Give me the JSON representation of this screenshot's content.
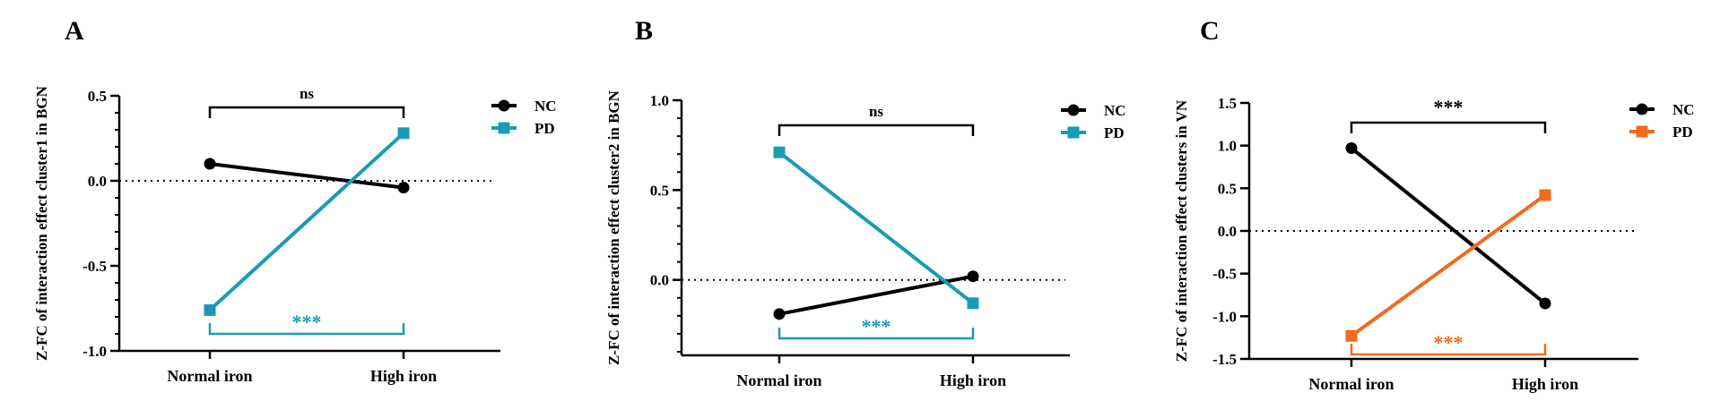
{
  "chart_data": [
    {
      "type": "line",
      "panel_label": "A",
      "ylabel": "Z-FC of interaction effect cluster1 in BGN",
      "categories": [
        "Normal iron",
        "High iron"
      ],
      "ylim": [
        -1.0,
        0.5
      ],
      "yticks": [
        "0.5",
        "0.0",
        "-0.5",
        "-1.0"
      ],
      "ytick_values": [
        0.5,
        0.0,
        -0.5,
        -1.0
      ],
      "minor_step": 0.1,
      "reference_line": 0.0,
      "series": [
        {
          "name": "NC",
          "values": [
            0.1,
            -0.04
          ],
          "color": "#000000",
          "marker": "circle"
        },
        {
          "name": "PD",
          "values": [
            -0.76,
            0.28
          ],
          "color": "#1a9bb5",
          "marker": "square"
        }
      ],
      "annotations": [
        {
          "text": "ns",
          "position": "top",
          "color": "#000000"
        },
        {
          "text": "***",
          "position": "bottom",
          "color": "#1a9bb5"
        }
      ]
    },
    {
      "type": "line",
      "panel_label": "B",
      "ylabel": "Z-FC of interaction effect cluster2 in BGN",
      "categories": [
        "Normal iron",
        "High iron"
      ],
      "ylim": [
        -0.42,
        1.0
      ],
      "yticks": [
        "1.0",
        "0.5",
        "0.0"
      ],
      "ytick_values": [
        1.0,
        0.5,
        0.0
      ],
      "minor_step": 0.1,
      "reference_line": 0.0,
      "series": [
        {
          "name": "NC",
          "values": [
            -0.19,
            0.02
          ],
          "color": "#000000",
          "marker": "circle"
        },
        {
          "name": "PD",
          "values": [
            0.71,
            -0.13
          ],
          "color": "#1a9bb5",
          "marker": "square"
        }
      ],
      "annotations": [
        {
          "text": "ns",
          "position": "top",
          "color": "#000000"
        },
        {
          "text": "***",
          "position": "bottom",
          "color": "#1a9bb5"
        }
      ]
    },
    {
      "type": "line",
      "panel_label": "C",
      "ylabel": "Z-FC of interaction effect clusters in VN",
      "categories": [
        "Normal iron",
        "High iron"
      ],
      "ylim": [
        -1.5,
        1.5
      ],
      "yticks": [
        "1.5",
        "1.0",
        "0.5",
        "0.0",
        "-0.5",
        "-1.0",
        "-1.5"
      ],
      "ytick_values": [
        1.5,
        1.0,
        0.5,
        0.0,
        -0.5,
        -1.0,
        -1.5
      ],
      "minor_step": 0.5,
      "reference_line": 0.0,
      "series": [
        {
          "name": "NC",
          "values": [
            0.97,
            -0.85
          ],
          "color": "#000000",
          "marker": "circle"
        },
        {
          "name": "PD",
          "values": [
            -1.23,
            0.42
          ],
          "color": "#f26b1d",
          "marker": "square"
        }
      ],
      "annotations": [
        {
          "text": "***",
          "position": "top",
          "color": "#000000"
        },
        {
          "text": "***",
          "position": "bottom",
          "color": "#f26b1d"
        }
      ]
    }
  ]
}
